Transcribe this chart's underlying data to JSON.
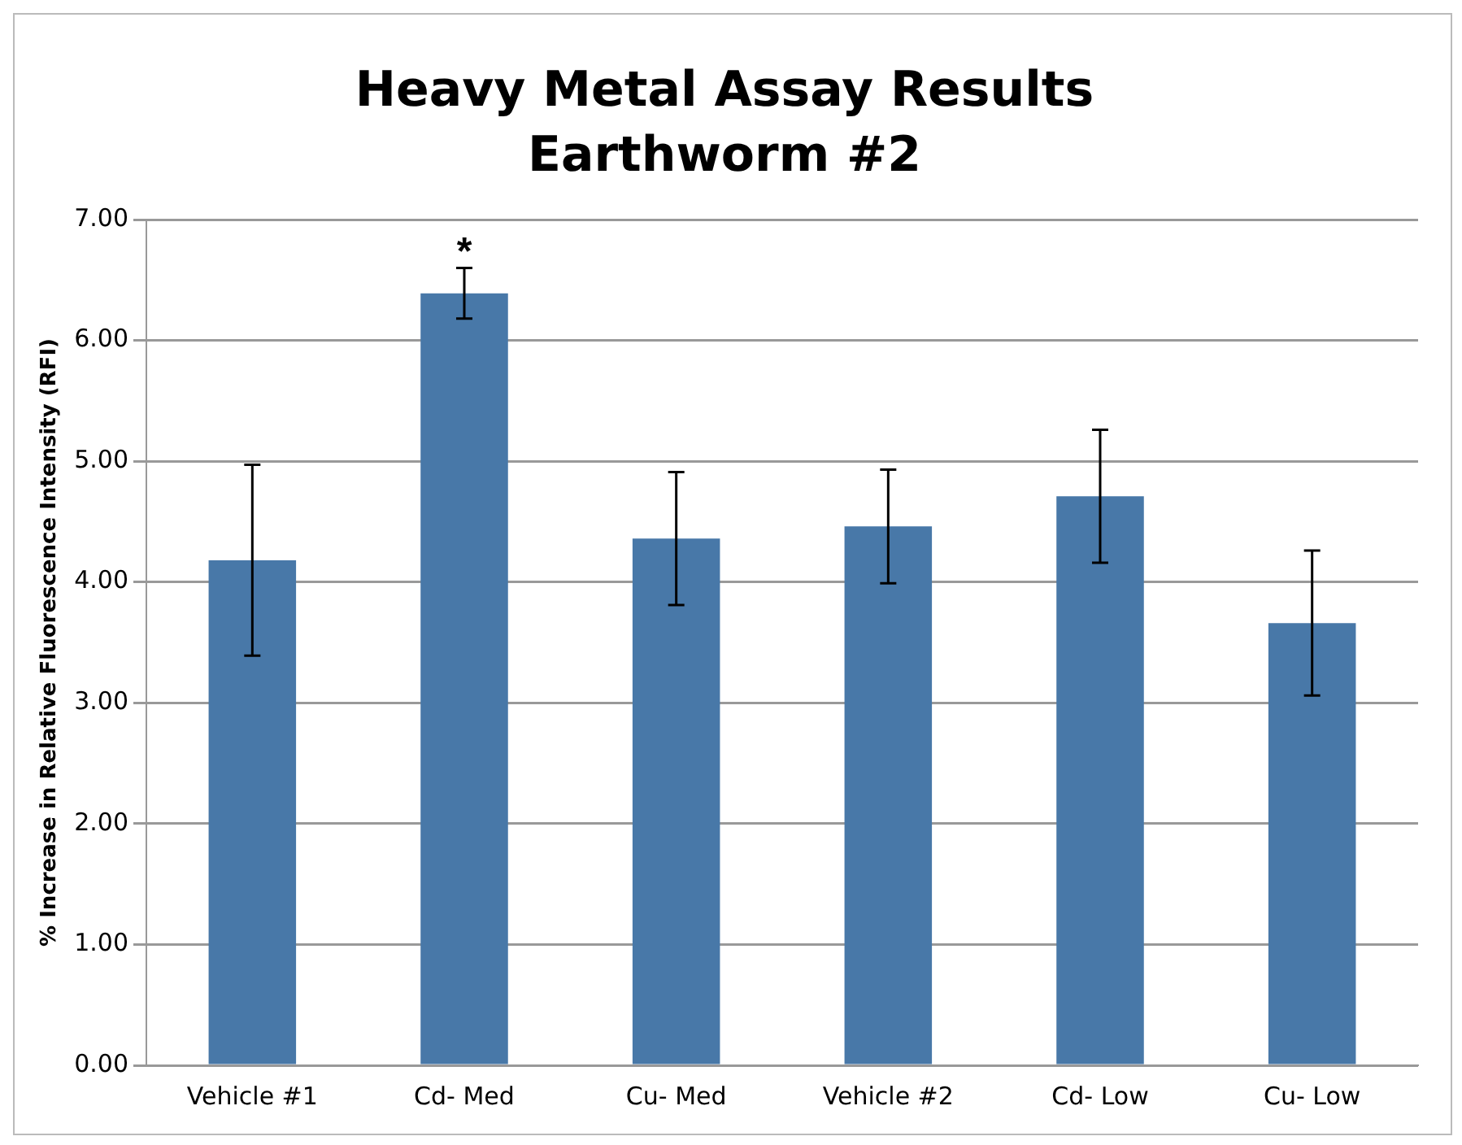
{
  "chart_data": {
    "type": "bar",
    "title": "Heavy Metal Assay Results",
    "subtitle": "Earthworm #2",
    "ylabel": "% Increase in Relative Fluorescence Intensity (RFI)",
    "categories": [
      "Vehicle #1",
      "Cd- Med",
      "Cu- Med",
      "Vehicle #2",
      "Cd- Low",
      "Cu- Low"
    ],
    "values": [
      4.18,
      6.39,
      4.36,
      4.46,
      4.71,
      3.66
    ],
    "errors": [
      0.79,
      0.21,
      0.55,
      0.47,
      0.55,
      0.6
    ],
    "color": "#4878a8",
    "ylim": [
      0,
      7
    ],
    "yticks": [
      {
        "value": 0,
        "label": "0.00"
      },
      {
        "value": 1,
        "label": "1.00"
      },
      {
        "value": 2,
        "label": "2.00"
      },
      {
        "value": 3,
        "label": "3.00"
      },
      {
        "value": 4,
        "label": "4.00"
      },
      {
        "value": 5,
        "label": "5.00"
      },
      {
        "value": 6,
        "label": "6.00"
      },
      {
        "value": 7,
        "label": "7.00"
      }
    ],
    "annotations": [
      {
        "text": "*",
        "x": "Cd- Med",
        "y": 6.61
      }
    ],
    "grid": "y",
    "legend": false
  }
}
